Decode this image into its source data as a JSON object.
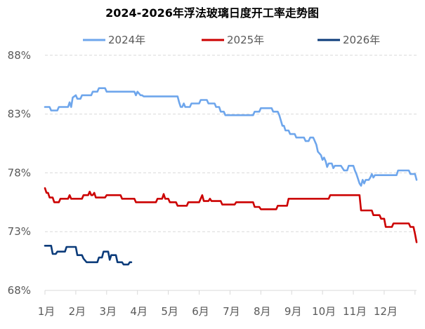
{
  "chart_data": {
    "type": "line",
    "title": "2024-2026年浮法玻璃日度开工率走势图",
    "xlabel": "",
    "ylabel": "",
    "ylim": [
      68,
      89
    ],
    "yticks": [
      "68%",
      "73%",
      "78%",
      "83%",
      "88%"
    ],
    "ytick_values": [
      68,
      73,
      78,
      83,
      88
    ],
    "xticks": [
      "1月",
      "2月",
      "3月",
      "4月",
      "5月",
      "6月",
      "7月",
      "8月",
      "9月",
      "10月",
      "11月",
      "12月"
    ],
    "x_unit": "month (fractional, 1 = start of January)",
    "grid": "horizontal dashed",
    "legend_position": "top",
    "series": [
      {
        "name": "2024年",
        "color": "#6ea6ec",
        "points": [
          [
            1.0,
            83.6
          ],
          [
            1.15,
            83.6
          ],
          [
            1.2,
            83.3
          ],
          [
            1.4,
            83.3
          ],
          [
            1.45,
            83.6
          ],
          [
            1.75,
            83.6
          ],
          [
            1.8,
            84.0
          ],
          [
            1.85,
            83.6
          ],
          [
            1.9,
            84.4
          ],
          [
            2.0,
            84.6
          ],
          [
            2.05,
            84.3
          ],
          [
            2.15,
            84.3
          ],
          [
            2.2,
            84.6
          ],
          [
            2.5,
            84.6
          ],
          [
            2.55,
            84.9
          ],
          [
            2.7,
            84.9
          ],
          [
            2.75,
            85.2
          ],
          [
            2.95,
            85.2
          ],
          [
            3.0,
            84.9
          ],
          [
            3.9,
            84.9
          ],
          [
            3.95,
            84.6
          ],
          [
            4.0,
            84.9
          ],
          [
            4.1,
            84.6
          ],
          [
            4.15,
            84.6
          ],
          [
            4.2,
            84.5
          ],
          [
            5.3,
            84.5
          ],
          [
            5.35,
            84.0
          ],
          [
            5.4,
            83.6
          ],
          [
            5.45,
            83.6
          ],
          [
            5.5,
            83.9
          ],
          [
            5.55,
            83.6
          ],
          [
            5.7,
            83.6
          ],
          [
            5.75,
            83.9
          ],
          [
            6.0,
            83.9
          ],
          [
            6.05,
            84.2
          ],
          [
            6.25,
            84.2
          ],
          [
            6.3,
            83.9
          ],
          [
            6.5,
            83.9
          ],
          [
            6.55,
            83.6
          ],
          [
            6.65,
            83.6
          ],
          [
            6.7,
            83.2
          ],
          [
            6.8,
            83.2
          ],
          [
            6.85,
            82.9
          ],
          [
            7.75,
            82.9
          ],
          [
            7.8,
            83.2
          ],
          [
            7.95,
            83.2
          ],
          [
            8.0,
            83.5
          ],
          [
            8.35,
            83.5
          ],
          [
            8.4,
            83.2
          ],
          [
            8.55,
            83.2
          ],
          [
            8.6,
            82.9
          ],
          [
            8.7,
            82.0
          ],
          [
            8.75,
            82.0
          ],
          [
            8.8,
            81.6
          ],
          [
            8.9,
            81.6
          ],
          [
            8.95,
            81.3
          ],
          [
            9.1,
            81.3
          ],
          [
            9.15,
            81.0
          ],
          [
            9.4,
            81.0
          ],
          [
            9.45,
            80.7
          ],
          [
            9.55,
            80.7
          ],
          [
            9.6,
            81.0
          ],
          [
            9.7,
            81.0
          ],
          [
            9.75,
            80.7
          ],
          [
            9.8,
            80.4
          ],
          [
            9.85,
            79.8
          ],
          [
            9.95,
            79.5
          ],
          [
            10.0,
            79.1
          ],
          [
            10.05,
            79.3
          ],
          [
            10.1,
            79.0
          ],
          [
            10.15,
            78.5
          ],
          [
            10.2,
            78.8
          ],
          [
            10.3,
            78.8
          ],
          [
            10.35,
            78.4
          ],
          [
            10.4,
            78.6
          ],
          [
            10.6,
            78.6
          ],
          [
            10.65,
            78.4
          ],
          [
            10.7,
            78.2
          ],
          [
            10.8,
            78.2
          ],
          [
            10.85,
            78.6
          ],
          [
            11.0,
            78.6
          ],
          [
            11.05,
            78.2
          ],
          [
            11.1,
            77.9
          ],
          [
            11.15,
            77.5
          ],
          [
            11.2,
            77.1
          ],
          [
            11.25,
            76.9
          ],
          [
            11.3,
            77.4
          ],
          [
            11.35,
            77.1
          ],
          [
            11.4,
            77.4
          ],
          [
            11.5,
            77.4
          ],
          [
            11.55,
            77.6
          ],
          [
            11.6,
            77.9
          ],
          [
            11.65,
            77.6
          ],
          [
            11.7,
            77.8
          ],
          [
            12.4,
            77.8
          ],
          [
            12.45,
            78.2
          ],
          [
            12.8,
            78.2
          ],
          [
            12.85,
            77.9
          ],
          [
            13.0,
            77.9
          ],
          [
            13.05,
            77.4
          ]
        ]
      },
      {
        "name": "2025年",
        "color": "#cc0000",
        "points": [
          [
            1.0,
            76.7
          ],
          [
            1.05,
            76.3
          ],
          [
            1.1,
            76.3
          ],
          [
            1.15,
            75.9
          ],
          [
            1.25,
            75.9
          ],
          [
            1.3,
            75.5
          ],
          [
            1.45,
            75.5
          ],
          [
            1.5,
            75.8
          ],
          [
            1.75,
            75.8
          ],
          [
            1.8,
            76.1
          ],
          [
            1.85,
            75.8
          ],
          [
            2.2,
            75.8
          ],
          [
            2.25,
            76.1
          ],
          [
            2.4,
            76.1
          ],
          [
            2.45,
            76.4
          ],
          [
            2.5,
            76.1
          ],
          [
            2.55,
            76.1
          ],
          [
            2.6,
            76.3
          ],
          [
            2.65,
            75.9
          ],
          [
            2.95,
            75.9
          ],
          [
            3.0,
            76.1
          ],
          [
            3.45,
            76.1
          ],
          [
            3.5,
            75.8
          ],
          [
            3.9,
            75.8
          ],
          [
            3.95,
            75.5
          ],
          [
            4.6,
            75.5
          ],
          [
            4.65,
            75.8
          ],
          [
            4.8,
            75.8
          ],
          [
            4.85,
            76.2
          ],
          [
            4.9,
            75.8
          ],
          [
            5.0,
            75.8
          ],
          [
            5.05,
            75.5
          ],
          [
            5.25,
            75.5
          ],
          [
            5.3,
            75.2
          ],
          [
            5.6,
            75.2
          ],
          [
            5.65,
            75.5
          ],
          [
            6.0,
            75.5
          ],
          [
            6.05,
            75.8
          ],
          [
            6.1,
            76.1
          ],
          [
            6.15,
            75.6
          ],
          [
            6.3,
            75.6
          ],
          [
            6.35,
            75.8
          ],
          [
            6.4,
            75.6
          ],
          [
            6.7,
            75.6
          ],
          [
            6.75,
            75.3
          ],
          [
            7.15,
            75.3
          ],
          [
            7.2,
            75.5
          ],
          [
            7.75,
            75.5
          ],
          [
            7.8,
            75.1
          ],
          [
            7.95,
            75.1
          ],
          [
            8.0,
            74.9
          ],
          [
            8.5,
            74.9
          ],
          [
            8.55,
            75.2
          ],
          [
            8.85,
            75.2
          ],
          [
            8.9,
            75.8
          ],
          [
            10.2,
            75.8
          ],
          [
            10.25,
            76.1
          ],
          [
            11.2,
            76.1
          ],
          [
            11.25,
            74.8
          ],
          [
            11.6,
            74.8
          ],
          [
            11.65,
            74.4
          ],
          [
            11.85,
            74.4
          ],
          [
            11.9,
            74.1
          ],
          [
            12.0,
            74.1
          ],
          [
            12.05,
            73.4
          ],
          [
            12.25,
            73.4
          ],
          [
            12.3,
            73.7
          ],
          [
            12.8,
            73.7
          ],
          [
            12.85,
            73.4
          ],
          [
            12.95,
            73.4
          ],
          [
            13.0,
            72.8
          ],
          [
            13.05,
            72.1
          ]
        ]
      },
      {
        "name": "2026年",
        "color": "#0b3b7a",
        "points": [
          [
            1.0,
            71.8
          ],
          [
            1.2,
            71.8
          ],
          [
            1.25,
            71.1
          ],
          [
            1.35,
            71.1
          ],
          [
            1.4,
            71.3
          ],
          [
            1.65,
            71.3
          ],
          [
            1.7,
            71.7
          ],
          [
            2.0,
            71.7
          ],
          [
            2.05,
            71.0
          ],
          [
            2.2,
            71.0
          ],
          [
            2.25,
            70.7
          ],
          [
            2.35,
            70.4
          ],
          [
            2.7,
            70.4
          ],
          [
            2.75,
            70.8
          ],
          [
            2.85,
            70.8
          ],
          [
            2.9,
            71.3
          ],
          [
            3.05,
            71.3
          ],
          [
            3.1,
            70.6
          ],
          [
            3.15,
            71.0
          ],
          [
            3.3,
            71.0
          ],
          [
            3.35,
            70.4
          ],
          [
            3.5,
            70.4
          ],
          [
            3.55,
            70.2
          ],
          [
            3.7,
            70.2
          ],
          [
            3.75,
            70.4
          ],
          [
            3.8,
            70.4
          ]
        ]
      }
    ]
  }
}
